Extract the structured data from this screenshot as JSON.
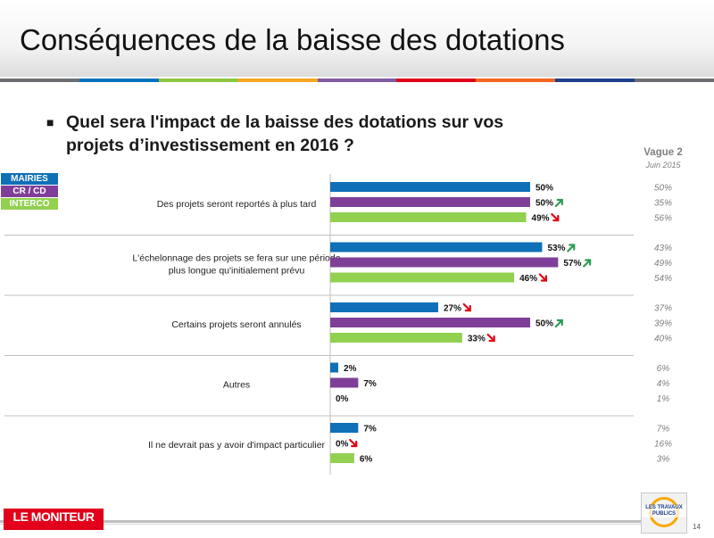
{
  "title": "Conséquences de la baisse des dotations",
  "question": "Quel sera l'impact de la baisse des dotations sur vos projets d’investissement en 2016 ?",
  "bullet": "■",
  "colors": {
    "mairies": "#0f70b7",
    "crcd": "#7f3f98",
    "interco": "#92d050",
    "trend_up": "#2e9b55",
    "trend_down": "#e30613",
    "separator": "#bfbfbf",
    "vague": "#7f7f7f"
  },
  "stripe_colors": [
    "#6d6e71",
    "#0073bc",
    "#8dc63f",
    "#f5a623",
    "#7f5aa0",
    "#e2001a",
    "#f26522",
    "#1d3f8c",
    "#6d6e71"
  ],
  "vague": {
    "title": "Vague 2",
    "subtitle": "Juin 2015"
  },
  "legend": [
    {
      "label": "MAIRIES",
      "color": "#0f70b7"
    },
    {
      "label": "CR / CD",
      "color": "#7f3f98"
    },
    {
      "label": "INTERCO",
      "color": "#92d050"
    }
  ],
  "chart_data": {
    "type": "bar",
    "orientation": "horizontal",
    "categories": [
      "Des projets seront reportés à plus tard",
      "L'échelonnage des projets se fera sur une période plus longue qu'initialement prévu",
      "Certains projets seront annulés",
      "Autres",
      "Il ne devrait pas y avoir d'impact particulier"
    ],
    "series": [
      {
        "name": "MAIRIES",
        "values": [
          50,
          53,
          27,
          2,
          7
        ]
      },
      {
        "name": "CR / CD",
        "values": [
          50,
          57,
          50,
          7,
          0
        ]
      },
      {
        "name": "INTERCO",
        "values": [
          49,
          46,
          33,
          0,
          6
        ]
      }
    ],
    "value_labels": [
      [
        "50%",
        "50%",
        "49%"
      ],
      [
        "53%",
        "57%",
        "46%"
      ],
      [
        "27%",
        "50%",
        "33%"
      ],
      [
        "2%",
        "7%",
        "0%"
      ],
      [
        "7%",
        "0%",
        "6%"
      ]
    ],
    "trends": [
      [
        "",
        "up",
        "down"
      ],
      [
        "up",
        "up",
        "down"
      ],
      [
        "down",
        "up",
        "down"
      ],
      [
        "",
        "",
        ""
      ],
      [
        "",
        "down",
        ""
      ]
    ],
    "previous_wave": {
      "name": "Vague 2 - Juin 2015",
      "values": [
        [
          "50%",
          "35%",
          "56%"
        ],
        [
          "43%",
          "49%",
          "54%"
        ],
        [
          "37%",
          "39%",
          "40%"
        ],
        [
          "6%",
          "4%",
          "1%"
        ],
        [
          "7%",
          "16%",
          "3%"
        ]
      ]
    },
    "xlim": [
      0,
      100
    ],
    "unit": "%"
  },
  "footer": {
    "logo_left": "LE MONITEUR",
    "logo_right": "LES TRAVAUX PUBLICS",
    "page": "14"
  }
}
